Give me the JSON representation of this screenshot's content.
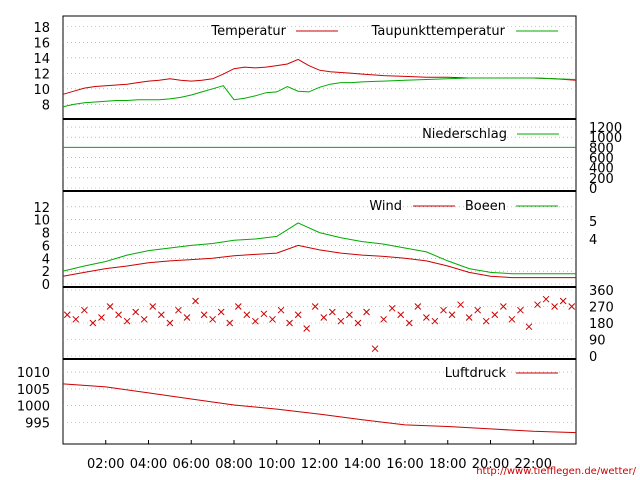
{
  "colors": {
    "red": "#cc0000",
    "green": "#00aa00",
    "grid": "#999999"
  },
  "footer": {
    "url": "http://www.tiefflegen.de/wetter/"
  },
  "time_axis": {
    "labels": [
      "02:00",
      "04:00",
      "06:00",
      "08:00",
      "10:00",
      "12:00",
      "14:00",
      "16:00",
      "18:00",
      "20:00",
      "22:00"
    ]
  },
  "chart_data": [
    {
      "type": "line",
      "panel": "temperature",
      "x_hours": [
        0,
        0.5,
        1,
        1.5,
        2,
        2.5,
        3,
        3.5,
        4,
        4.5,
        5,
        5.5,
        6,
        6.5,
        7,
        7.5,
        8,
        8.5,
        9,
        9.5,
        10,
        10.5,
        11,
        11.5,
        12,
        12.5,
        13,
        13.5,
        14,
        15,
        16,
        17,
        18,
        19,
        20,
        21,
        22,
        23,
        24
      ],
      "series": [
        {
          "name": "Temperatur",
          "color": "#cc0000",
          "values": [
            9.3,
            9.7,
            10.1,
            10.3,
            10.4,
            10.5,
            10.6,
            10.8,
            11.0,
            11.1,
            11.3,
            11.1,
            11.0,
            11.1,
            11.3,
            11.9,
            12.6,
            12.8,
            12.7,
            12.8,
            13.0,
            13.2,
            13.8,
            13.0,
            12.4,
            12.2,
            12.1,
            12.0,
            11.9,
            11.7,
            11.6,
            11.5,
            11.5,
            11.4,
            11.4,
            11.4,
            11.4,
            11.3,
            11.1
          ]
        },
        {
          "name": "Taupunkttemperatur",
          "color": "#00aa00",
          "values": [
            7.7,
            8.0,
            8.2,
            8.3,
            8.4,
            8.5,
            8.5,
            8.6,
            8.6,
            8.6,
            8.7,
            8.9,
            9.2,
            9.6,
            10.0,
            10.4,
            8.6,
            8.8,
            9.1,
            9.5,
            9.6,
            10.3,
            9.7,
            9.6,
            10.2,
            10.6,
            10.8,
            10.8,
            10.9,
            11.0,
            11.1,
            11.2,
            11.3,
            11.4,
            11.4,
            11.4,
            11.4,
            11.3,
            11.2
          ]
        }
      ],
      "ylim": [
        6.5,
        19
      ],
      "yticks": [
        8,
        10,
        12,
        14,
        16,
        18
      ]
    },
    {
      "type": "line",
      "panel": "precipitation",
      "x_hours": [
        0,
        24
      ],
      "series": [
        {
          "name": "Niederschlag",
          "color": "#00aa00",
          "values": [
            800,
            800
          ]
        }
      ],
      "ylim": [
        0,
        1300
      ],
      "yticks": [
        0,
        200,
        400,
        600,
        800,
        1000,
        1200
      ],
      "axis_side": "right"
    },
    {
      "type": "line",
      "panel": "wind",
      "x_hours": [
        0,
        1,
        2,
        3,
        4,
        5,
        6,
        7,
        8,
        9,
        10,
        11,
        12,
        13,
        14,
        15,
        16,
        17,
        18,
        19,
        20,
        21,
        22,
        23,
        24
      ],
      "series": [
        {
          "name": "Wind",
          "color": "#cc0000",
          "values": [
            1.2,
            1.8,
            2.4,
            2.8,
            3.3,
            3.6,
            3.8,
            4.0,
            4.4,
            4.6,
            4.8,
            6.0,
            5.3,
            4.8,
            4.5,
            4.3,
            4.0,
            3.6,
            2.8,
            1.8,
            1.2,
            1.0,
            1.0,
            1.0,
            1.0
          ]
        },
        {
          "name": "Boeen",
          "color": "#00aa00",
          "values": [
            2.0,
            2.8,
            3.5,
            4.5,
            5.2,
            5.6,
            6.0,
            6.3,
            6.8,
            7.0,
            7.4,
            9.5,
            8.0,
            7.2,
            6.6,
            6.2,
            5.6,
            5.0,
            3.6,
            2.4,
            1.8,
            1.6,
            1.6,
            1.6,
            1.6
          ]
        }
      ],
      "ylim": [
        0,
        14
      ],
      "yticks": [
        0,
        2,
        4,
        6,
        8,
        10,
        12
      ],
      "right_labels": [
        "4",
        "5"
      ]
    },
    {
      "type": "scatter",
      "panel": "wind_direction",
      "series": [
        {
          "color": "#cc0000",
          "marker": "x",
          "points": [
            [
              0.2,
              225
            ],
            [
              0.6,
              200
            ],
            [
              1.0,
              250
            ],
            [
              1.4,
              180
            ],
            [
              1.8,
              210
            ],
            [
              2.2,
              270
            ],
            [
              2.6,
              225
            ],
            [
              3.0,
              190
            ],
            [
              3.4,
              240
            ],
            [
              3.8,
              200
            ],
            [
              4.2,
              270
            ],
            [
              4.6,
              225
            ],
            [
              5.0,
              180
            ],
            [
              5.4,
              250
            ],
            [
              5.8,
              210
            ],
            [
              6.2,
              300
            ],
            [
              6.6,
              225
            ],
            [
              7.0,
              200
            ],
            [
              7.4,
              240
            ],
            [
              7.8,
              180
            ],
            [
              8.2,
              270
            ],
            [
              8.6,
              225
            ],
            [
              9.0,
              190
            ],
            [
              9.4,
              230
            ],
            [
              9.8,
              200
            ],
            [
              10.2,
              250
            ],
            [
              10.6,
              180
            ],
            [
              11.0,
              225
            ],
            [
              11.4,
              150
            ],
            [
              11.8,
              270
            ],
            [
              12.2,
              210
            ],
            [
              12.6,
              240
            ],
            [
              13.0,
              190
            ],
            [
              13.4,
              225
            ],
            [
              13.8,
              180
            ],
            [
              14.2,
              240
            ],
            [
              14.6,
              40
            ],
            [
              15.0,
              200
            ],
            [
              15.4,
              260
            ],
            [
              15.8,
              225
            ],
            [
              16.2,
              180
            ],
            [
              16.6,
              270
            ],
            [
              17.0,
              210
            ],
            [
              17.4,
              190
            ],
            [
              17.8,
              250
            ],
            [
              18.2,
              225
            ],
            [
              18.6,
              280
            ],
            [
              19.0,
              210
            ],
            [
              19.4,
              250
            ],
            [
              19.8,
              190
            ],
            [
              20.2,
              225
            ],
            [
              20.6,
              270
            ],
            [
              21.0,
              200
            ],
            [
              21.4,
              250
            ],
            [
              21.8,
              160
            ],
            [
              22.2,
              280
            ],
            [
              22.6,
              310
            ],
            [
              23.0,
              270
            ],
            [
              23.4,
              300
            ],
            [
              23.8,
              270
            ]
          ]
        }
      ],
      "ylim": [
        0,
        360
      ],
      "yticks": [
        0,
        90,
        180,
        270,
        360
      ],
      "axis_side": "right"
    },
    {
      "type": "line",
      "panel": "pressure",
      "x_hours": [
        0,
        2,
        4,
        6,
        8,
        10,
        12,
        14,
        16,
        18,
        20,
        22,
        24
      ],
      "series": [
        {
          "name": "Luftdruck",
          "color": "#cc0000",
          "values": [
            1006.5,
            1005.6,
            1003.8,
            1002.0,
            1000.2,
            999.0,
            997.5,
            995.8,
            994.3,
            993.8,
            993.1,
            992.4,
            992.0
          ]
        }
      ],
      "ylim": [
        989.5,
        1013
      ],
      "yticks": [
        995,
        1000,
        1005,
        1010
      ]
    }
  ]
}
